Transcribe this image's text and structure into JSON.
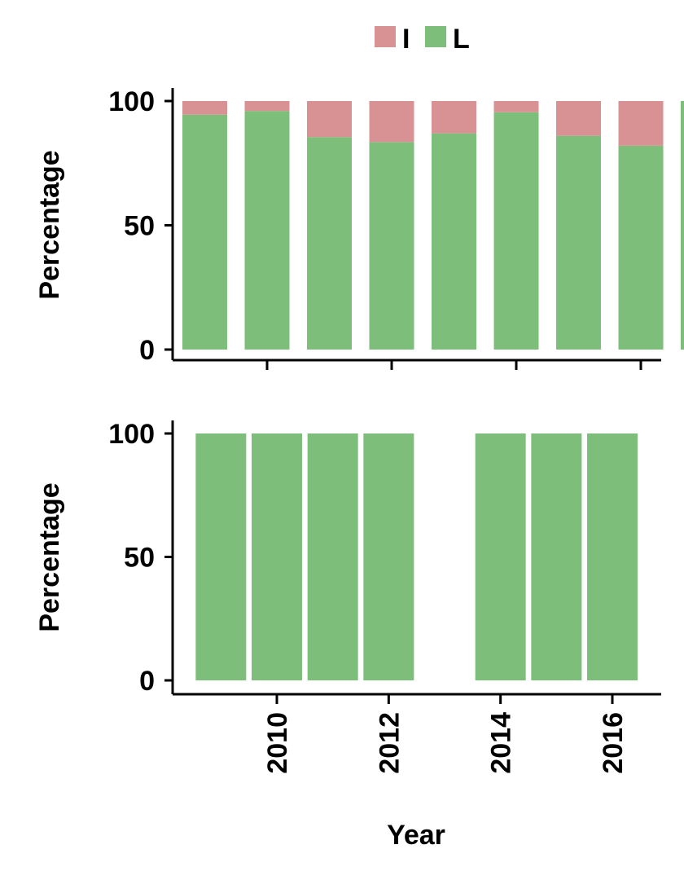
{
  "legend": {
    "placement": "top-center",
    "items": [
      {
        "label": "I",
        "color": "#d99294"
      },
      {
        "label": "L",
        "color": "#7dbe7a"
      }
    ]
  },
  "xlabel": "Year",
  "chart_data": [
    {
      "type": "bar",
      "stacked": true,
      "ylabel": "Percentage",
      "ylim": [
        0,
        100
      ],
      "yticks": [
        0,
        50,
        100
      ],
      "xticks_labels_shown": false,
      "categories": [
        2009,
        2010,
        2011,
        2012,
        2013,
        2014,
        2015,
        2016,
        2017
      ],
      "series": [
        {
          "name": "L",
          "color": "#7dbe7a",
          "values": [
            94.5,
            96,
            85.5,
            83.5,
            87,
            95.5,
            86,
            82,
            100
          ]
        },
        {
          "name": "I",
          "color": "#d99294",
          "values": [
            5.5,
            4,
            14.5,
            16.5,
            13,
            4.5,
            14,
            18,
            0
          ]
        }
      ],
      "xticks": [
        2010,
        2012,
        2014,
        2016
      ],
      "grid": false
    },
    {
      "type": "bar",
      "stacked": true,
      "ylabel": "Percentage",
      "ylim": [
        0,
        100
      ],
      "yticks": [
        0,
        50,
        100
      ],
      "categories": [
        2009,
        2010,
        2011,
        2012,
        2014,
        2015,
        2016
      ],
      "series": [
        {
          "name": "L",
          "color": "#7dbe7a",
          "values": [
            100,
            100,
            100,
            100,
            100,
            100,
            100
          ]
        },
        {
          "name": "I",
          "color": "#d99294",
          "values": [
            0,
            0,
            0,
            0,
            0,
            0,
            0
          ]
        }
      ],
      "xticks": [
        2010,
        2012,
        2014,
        2016
      ],
      "xticks_labels": [
        "2010",
        "2012",
        "2014",
        "2016"
      ],
      "grid": false
    }
  ]
}
